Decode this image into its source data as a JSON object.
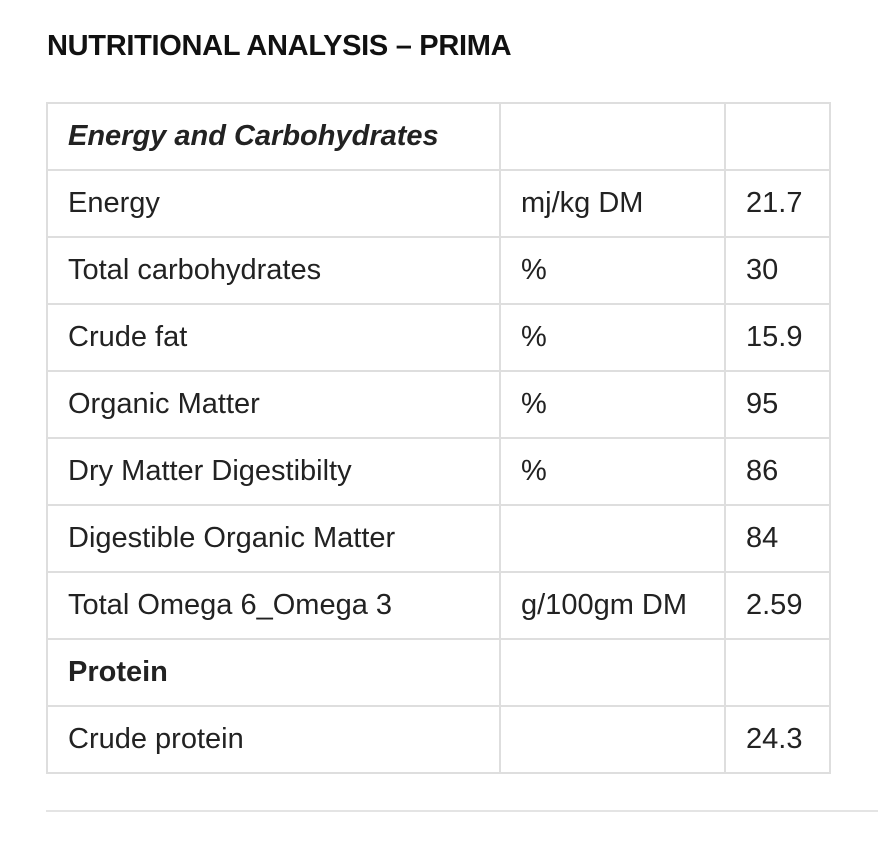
{
  "document": {
    "title": "NUTRITIONAL ANALYSIS – PRIMA"
  },
  "table": {
    "rows": [
      {
        "name": "Energy and Carbohydrates",
        "unit": "",
        "value": "",
        "style": "section-italic"
      },
      {
        "name": "Energy",
        "unit": "mj/kg DM",
        "value": "21.7",
        "style": ""
      },
      {
        "name": "Total carbohydrates",
        "unit": "%",
        "value": "30",
        "style": ""
      },
      {
        "name": "Crude fat",
        "unit": "%",
        "value": "15.9",
        "style": ""
      },
      {
        "name": "Organic Matter",
        "unit": "%",
        "value": "95",
        "style": ""
      },
      {
        "name": "Dry Matter Digestibilty",
        "unit": "%",
        "value": "86",
        "style": ""
      },
      {
        "name": "Digestible Organic Matter",
        "unit": "",
        "value": "84",
        "style": ""
      },
      {
        "name": "Total Omega 6_Omega 3",
        "unit": "g/100gm DM",
        "value": "2.59",
        "style": ""
      },
      {
        "name": "Protein",
        "unit": "",
        "value": "",
        "style": "section-bold"
      },
      {
        "name": "Crude protein",
        "unit": "",
        "value": "24.3",
        "style": ""
      }
    ]
  }
}
